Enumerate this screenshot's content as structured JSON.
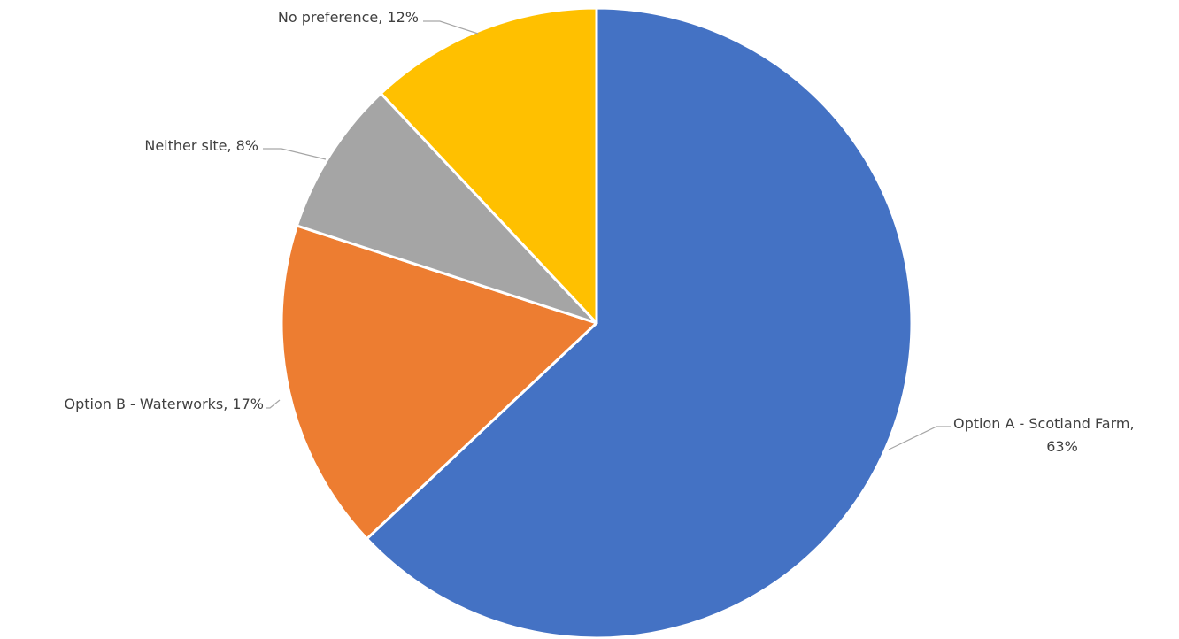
{
  "chart_data": {
    "type": "pie",
    "title": "",
    "slices": [
      {
        "category": "Option A - Scotland Farm",
        "value": 63,
        "color": "#4472C4",
        "label_line1": "Option A - Scotland Farm,",
        "label_line2": "63%"
      },
      {
        "category": "Option B - Waterworks",
        "value": 17,
        "color": "#ED7D31",
        "label_line1": "Option B - Waterworks, 17%",
        "label_line2": ""
      },
      {
        "category": "Neither site",
        "value": 8,
        "color": "#A5A5A5",
        "label_line1": "Neither site, 8%",
        "label_line2": ""
      },
      {
        "category": "No preference",
        "value": 12,
        "color": "#FFC000",
        "label_line1": "No preference, 12%",
        "label_line2": ""
      }
    ],
    "start": "12 o'clock",
    "direction": "clockwise",
    "legend": "none",
    "data_labels": "outside with leader lines"
  }
}
